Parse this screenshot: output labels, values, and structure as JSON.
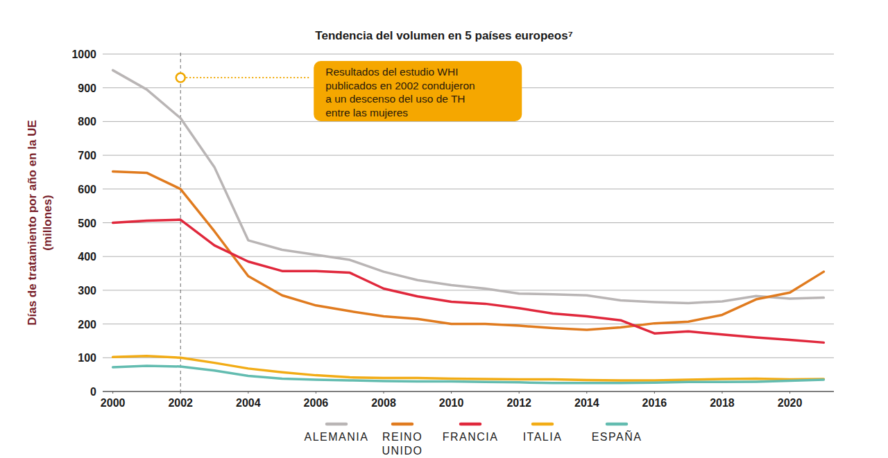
{
  "chart_data": {
    "type": "line",
    "title": "Tendencia del volumen en 5 países europeos⁷",
    "y_label": [
      "Días de tratamiento por año en la UE",
      "(millones)"
    ],
    "x": [
      2000,
      2001,
      2002,
      2003,
      2004,
      2005,
      2006,
      2007,
      2008,
      2009,
      2010,
      2011,
      2012,
      2013,
      2014,
      2015,
      2016,
      2017,
      2018,
      2019,
      2020,
      2021
    ],
    "series": [
      {
        "name": "ALEMANIA",
        "color": "#b9b5b5",
        "values": [
          952,
          895,
          810,
          665,
          448,
          420,
          405,
          390,
          355,
          330,
          315,
          305,
          290,
          288,
          285,
          270,
          265,
          262,
          267,
          283,
          275,
          278
        ]
      },
      {
        "name": "REINO UNIDO",
        "color": "#e07b1f",
        "values": [
          652,
          648,
          600,
          475,
          342,
          285,
          255,
          238,
          223,
          215,
          200,
          200,
          195,
          188,
          183,
          190,
          202,
          207,
          227,
          273,
          293,
          355
        ]
      },
      {
        "name": "FRANCIA",
        "color": "#e0283c",
        "values": [
          500,
          506,
          509,
          433,
          385,
          357,
          357,
          352,
          305,
          282,
          266,
          260,
          247,
          231,
          223,
          211,
          172,
          178,
          169,
          160,
          153,
          145
        ]
      },
      {
        "name": "ITALIA",
        "color": "#f2ac16",
        "values": [
          102,
          105,
          100,
          85,
          68,
          57,
          48,
          42,
          40,
          40,
          38,
          37,
          36,
          36,
          34,
          33,
          33,
          35,
          37,
          38,
          36,
          37
        ]
      },
      {
        "name": "ESPAÑA",
        "color": "#63bcb0",
        "values": [
          72,
          76,
          74,
          62,
          46,
          38,
          35,
          33,
          31,
          30,
          30,
          28,
          27,
          25,
          25,
          25,
          26,
          28,
          28,
          29,
          32,
          35
        ]
      }
    ],
    "xlim": [
      1999.7,
      2021.3
    ],
    "xticks": [
      2000,
      2002,
      2004,
      2006,
      2008,
      2010,
      2012,
      2014,
      2016,
      2018,
      2020
    ],
    "ylim": [
      0,
      1000
    ],
    "yticks": [
      0,
      100,
      200,
      300,
      400,
      500,
      600,
      700,
      800,
      900,
      1000
    ],
    "grid": true,
    "legend": "bottom",
    "annotation": {
      "x": 2002,
      "y": 930,
      "text": [
        "Resultados del estudio WHI",
        "publicados en 2002 condujeron",
        "a un descenso del uso de TH",
        "entre las mujeres"
      ]
    }
  }
}
